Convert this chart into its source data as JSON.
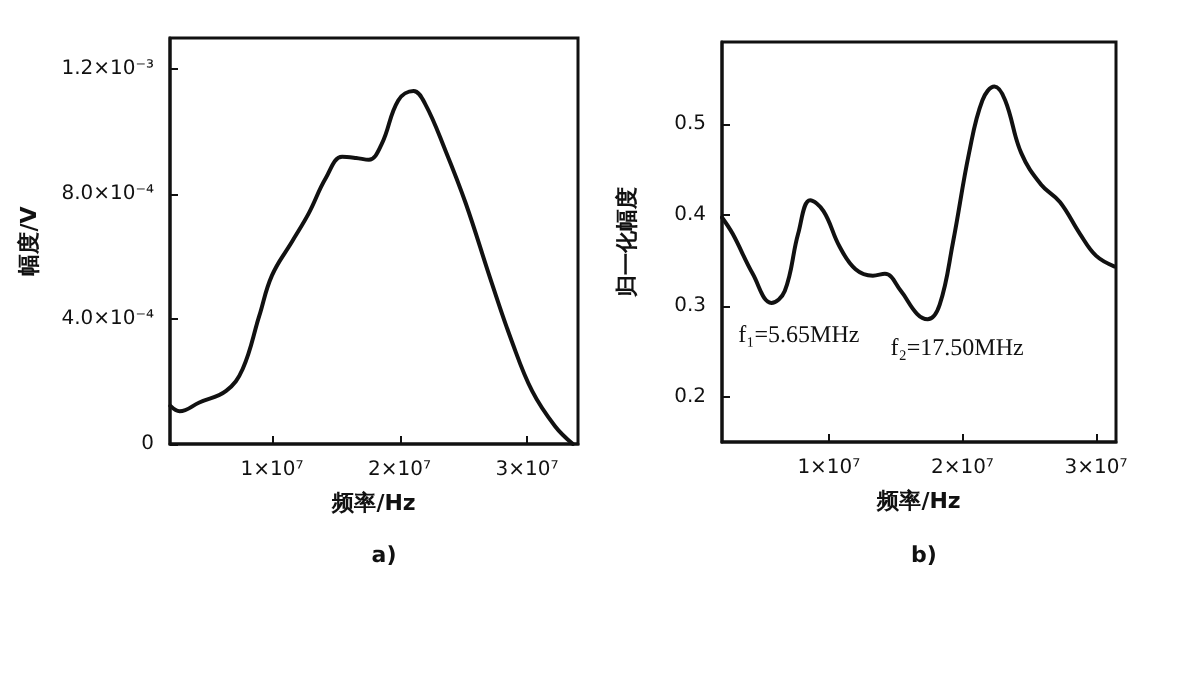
{
  "chart_data": [
    {
      "type": "line",
      "title": "a)",
      "xlabel": "频率/Hz",
      "ylabel": "幅度/V",
      "xlim": [
        2000000,
        34000000
      ],
      "ylim": [
        0,
        0.0013
      ],
      "xticks": [
        {
          "value": 10000000,
          "label": "1×10⁷"
        },
        {
          "value": 20000000,
          "label": "2×10⁷"
        },
        {
          "value": 30000000,
          "label": "3×10⁷"
        }
      ],
      "yticks": [
        0,
        {
          "value": 0.0004,
          "label": "4.0×10⁻⁴"
        },
        {
          "value": 0.0008,
          "label": "8.0×10⁻⁴"
        },
        {
          "value": 0.0012,
          "label": "1.2×10⁻³"
        }
      ],
      "grid": false,
      "marker": "none",
      "line_style": "solid",
      "series": [
        {
          "color": "#111111",
          "x": [
            2030000,
            2760000,
            4300000,
            6400000,
            7700000,
            9000000,
            10000000,
            11600000,
            12900000,
            14200000,
            15500000,
            16600000,
            17600000,
            18600000,
            19900000,
            21100000,
            22000000,
            23600000,
            25200000,
            27200000,
            28800000,
            30400000,
            32200000,
            33600000
          ],
          "values": [
            0.000122,
            0.000105,
            0.000133,
            0.00017,
            0.00024,
            0.00041,
            0.00054,
            0.00065,
            0.00074,
            0.00085,
            0.00092,
            0.000916,
            0.00091,
            0.00096,
            0.0011,
            0.00113,
            0.00109,
            0.00094,
            0.00077,
            0.00052,
            0.00033,
            0.00017,
            5.7e-05,
            0
          ]
        }
      ]
    },
    {
      "type": "line",
      "title": "b)",
      "xlabel": "频率/Hz",
      "ylabel": "归一化幅度",
      "xlim": [
        2000000,
        31500000
      ],
      "ylim": [
        0.15,
        0.59
      ],
      "xticks": [
        {
          "value": 10000000,
          "label": "1×10⁷"
        },
        {
          "value": 20000000,
          "label": "2×10⁷"
        },
        {
          "value": 30000000,
          "label": "3×10⁷"
        }
      ],
      "yticks": [
        0.2,
        0.3,
        0.4,
        0.5
      ],
      "grid": false,
      "marker": "none",
      "line_style": "solid",
      "annotations": [
        {
          "text": "f₁=5.65MHz",
          "x": 5650000,
          "y": 0.3
        },
        {
          "text": "f₂=17.50MHz",
          "x": 17500000,
          "y": 0.285
        }
      ],
      "series": [
        {
          "color": "#111111",
          "x": [
            2000000,
            2800000,
            4300000,
            5700000,
            6700000,
            7700000,
            8600000,
            9600000,
            10800000,
            12000000,
            13300000,
            14200000,
            15400000,
            16600000,
            17400000,
            18300000,
            19300000,
            20500000,
            21500000,
            22400000,
            23200000,
            24400000,
            25900000,
            27300000,
            28800000,
            30000000,
            31400000
          ],
          "values": [
            0.397,
            0.379,
            0.335,
            0.303,
            0.316,
            0.379,
            0.416,
            0.404,
            0.365,
            0.34,
            0.333,
            0.335,
            0.316,
            0.291,
            0.285,
            0.301,
            0.37,
            0.468,
            0.526,
            0.541,
            0.526,
            0.468,
            0.433,
            0.414,
            0.379,
            0.355,
            0.343
          ]
        }
      ]
    }
  ]
}
